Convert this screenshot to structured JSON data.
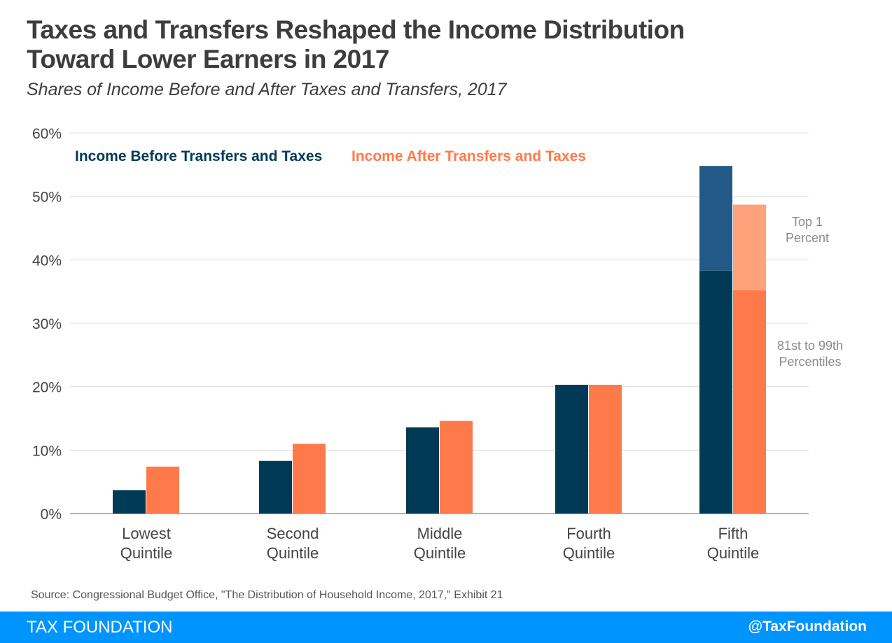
{
  "title_line1": "Taxes and Transfers Reshaped the Income Distribution",
  "title_line2": "Toward Lower Earners in 2017",
  "subtitle": "Shares of Income Before and After Taxes and Transfers, 2017",
  "source": "Source: Congressional Budget Office, \"The Distribution of Household Income, 2017,\" Exhibit 21",
  "footer": {
    "brand": "TAX FOUNDATION",
    "handle": "@TaxFoundation"
  },
  "colors": {
    "before": "#003a57",
    "before_top1": "#235985",
    "after": "#ff7a4a",
    "after_top1": "#ffa27c",
    "grid": "#dcdcdc",
    "footer": "#0094ff"
  },
  "chart_data": {
    "type": "bar",
    "ylim": [
      0,
      60
    ],
    "yticks": [
      "0%",
      "10%",
      "20%",
      "30%",
      "40%",
      "50%",
      "60%"
    ],
    "ytick_values": [
      0,
      10,
      20,
      30,
      40,
      50,
      60
    ],
    "grid": true,
    "legend_placement": "top-left",
    "categories": [
      [
        "Lowest",
        "Quintile"
      ],
      [
        "Second",
        "Quintile"
      ],
      [
        "Middle",
        "Quintile"
      ],
      [
        "Fourth",
        "Quintile"
      ],
      [
        "Fifth",
        "Quintile"
      ]
    ],
    "series": [
      {
        "name": "Income Before Transfers and Taxes",
        "values": [
          3.7,
          8.3,
          13.6,
          20.3,
          54.8
        ]
      },
      {
        "name": "Income After Transfers and Taxes",
        "values": [
          7.4,
          11.0,
          14.6,
          20.3,
          48.7
        ]
      }
    ],
    "fifth_quintile_breakdown": {
      "before": {
        "81st to 99th Percentiles": 38.3,
        "Top 1 Percent": 16.5
      },
      "after": {
        "81st to 99th Percentiles": 35.2,
        "Top 1 Percent": 13.5
      }
    },
    "annotations": [
      {
        "text": [
          "Top 1",
          "Percent"
        ]
      },
      {
        "text": [
          "81st to 99th",
          "Percentiles"
        ]
      }
    ]
  }
}
